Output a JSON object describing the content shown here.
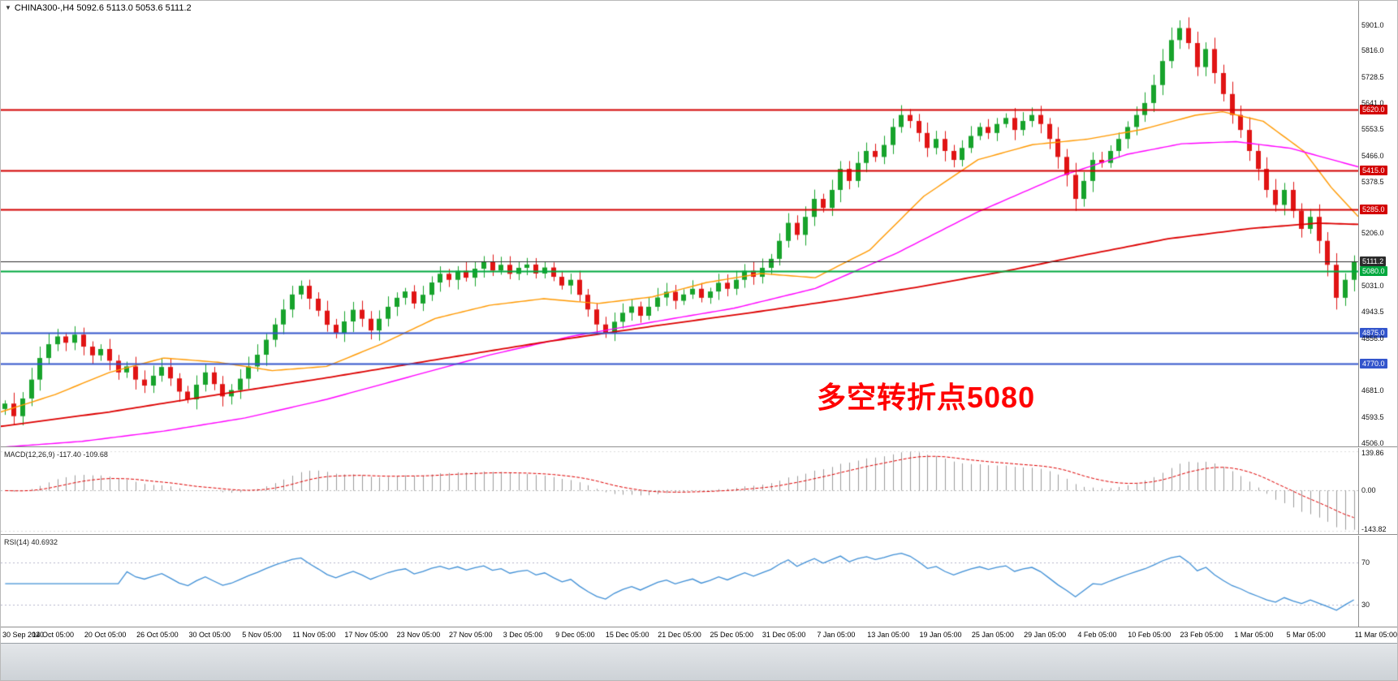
{
  "header": {
    "triangle": "▼",
    "symbol_line": "CHINA300-,H4  5092.6 5113.0 5053.6 5111.2"
  },
  "chart_data": {
    "type": "candlestick",
    "symbol": "CHINA300-",
    "timeframe": "H4",
    "ohlc_display": {
      "open": 5092.6,
      "high": 5113.0,
      "low": 5053.6,
      "close": 5111.2
    },
    "annotation": {
      "text": "多空转折点5080",
      "color": "#ff0000"
    },
    "x_labels": [
      "30 Sep 2020",
      "14 Oct 05:00",
      "20 Oct 05:00",
      "26 Oct 05:00",
      "30 Oct 05:00",
      "5 Nov 05:00",
      "11 Nov 05:00",
      "17 Nov 05:00",
      "23 Nov 05:00",
      "27 Nov 05:00",
      "3 Dec 05:00",
      "9 Dec 05:00",
      "15 Dec 05:00",
      "21 Dec 05:00",
      "25 Dec 05:00",
      "31 Dec 05:00",
      "7 Jan 05:00",
      "13 Jan 05:00",
      "19 Jan 05:00",
      "25 Jan 05:00",
      "29 Jan 05:00",
      "4 Feb 05:00",
      "10 Feb 05:00",
      "23 Feb 05:00",
      "1 Mar 05:00",
      "5 Mar 05:00",
      "11 Mar 05:00"
    ],
    "closes": [
      4638,
      4596,
      4655,
      4718,
      4790,
      4836,
      4862,
      4841,
      4868,
      4828,
      4799,
      4820,
      4781,
      4742,
      4762,
      4718,
      4698,
      4731,
      4760,
      4722,
      4678,
      4652,
      4701,
      4742,
      4703,
      4662,
      4683,
      4721,
      4762,
      4801,
      4851,
      4902,
      4952,
      5002,
      5031,
      4988,
      4948,
      4901,
      4872,
      4912,
      4951,
      4921,
      4882,
      4921,
      4961,
      4991,
      5012,
      4972,
      5001,
      5042,
      5071,
      5051,
      5081,
      5058,
      5088,
      5112,
      5082,
      5101,
      5071,
      5091,
      5102,
      5072,
      5092,
      5061,
      5032,
      5051,
      5001,
      4952,
      4902,
      4872,
      4911,
      4941,
      4962,
      4931,
      4961,
      4992,
      5011,
      4981,
      5002,
      5021,
      4991,
      5012,
      5041,
      5021,
      5051,
      5081,
      5061,
      5091,
      5121,
      5181,
      5241,
      5201,
      5261,
      5321,
      5291,
      5351,
      5421,
      5381,
      5441,
      5481,
      5461,
      5501,
      5561,
      5601,
      5581,
      5541,
      5491,
      5521,
      5481,
      5451,
      5491,
      5531,
      5561,
      5541,
      5571,
      5591,
      5551,
      5581,
      5601,
      5571,
      5521,
      5461,
      5401,
      5321,
      5381,
      5451,
      5441,
      5481,
      5521,
      5561,
      5601,
      5641,
      5701,
      5781,
      5851,
      5891,
      5841,
      5761,
      5821,
      5741,
      5671,
      5601,
      5551,
      5481,
      5421,
      5351,
      5301,
      5351,
      5281,
      5221,
      5261,
      5181,
      5101,
      4991,
      5051,
      5111.2
    ],
    "price_axis": {
      "range": {
        "max": 5982,
        "min": 4495
      },
      "ticks": [
        "5901.0",
        "5816.0",
        "5728.5",
        "5641.0",
        "5553.5",
        "5466.0",
        "5378.5",
        "5206.0",
        "5031.0",
        "4943.5",
        "4856.0",
        "4681.0",
        "4593.5",
        "4506.0"
      ]
    },
    "hlines": [
      {
        "value": 5620.0,
        "label": "5620.0",
        "color": "#d30000",
        "badge_bg": "#d30000",
        "width": 2
      },
      {
        "value": 5415.0,
        "label": "5415.0",
        "color": "#d30000",
        "badge_bg": "#d30000",
        "width": 2
      },
      {
        "value": 5285.0,
        "label": "5285.0",
        "color": "#d30000",
        "badge_bg": "#d30000",
        "width": 2
      },
      {
        "value": 5111.2,
        "label": "5111.2",
        "color": "#2b2b2b",
        "badge_bg": "#2b2b2b",
        "width": 1
      },
      {
        "value": 5080.0,
        "label": "5080.0",
        "color": "#00a83e",
        "badge_bg": "#00a83e",
        "width": 2
      },
      {
        "value": 4875.0,
        "label": "4875.0",
        "color": "#3355cc",
        "badge_bg": "#3355cc",
        "width": 2
      },
      {
        "value": 4770.0,
        "label": "4770.0",
        "color": "#3355cc",
        "badge_bg": "#3355cc",
        "width": 2
      }
    ],
    "moving_averages": [
      {
        "name": "ma-fast-orange",
        "color": "#ff9900",
        "width": 1.4,
        "points": [
          [
            0,
            4610
          ],
          [
            0.04,
            4668
          ],
          [
            0.08,
            4742
          ],
          [
            0.12,
            4790
          ],
          [
            0.16,
            4776
          ],
          [
            0.2,
            4748
          ],
          [
            0.24,
            4762
          ],
          [
            0.28,
            4836
          ],
          [
            0.32,
            4922
          ],
          [
            0.36,
            4966
          ],
          [
            0.4,
            4988
          ],
          [
            0.44,
            4972
          ],
          [
            0.48,
            4994
          ],
          [
            0.52,
            5042
          ],
          [
            0.56,
            5072
          ],
          [
            0.6,
            5058
          ],
          [
            0.64,
            5150
          ],
          [
            0.68,
            5330
          ],
          [
            0.72,
            5452
          ],
          [
            0.76,
            5502
          ],
          [
            0.8,
            5520
          ],
          [
            0.84,
            5552
          ],
          [
            0.88,
            5600
          ],
          [
            0.9,
            5612
          ],
          [
            0.93,
            5580
          ],
          [
            0.96,
            5480
          ],
          [
            0.98,
            5360
          ],
          [
            1.0,
            5262
          ]
        ]
      },
      {
        "name": "ma-medium-magenta",
        "color": "#ff00ff",
        "width": 1.4,
        "points": [
          [
            0,
            4492
          ],
          [
            0.06,
            4512
          ],
          [
            0.12,
            4546
          ],
          [
            0.18,
            4590
          ],
          [
            0.24,
            4652
          ],
          [
            0.3,
            4726
          ],
          [
            0.36,
            4800
          ],
          [
            0.42,
            4862
          ],
          [
            0.48,
            4910
          ],
          [
            0.54,
            4956
          ],
          [
            0.6,
            5022
          ],
          [
            0.66,
            5140
          ],
          [
            0.72,
            5278
          ],
          [
            0.78,
            5396
          ],
          [
            0.83,
            5470
          ],
          [
            0.87,
            5505
          ],
          [
            0.91,
            5512
          ],
          [
            0.95,
            5490
          ],
          [
            1.0,
            5428
          ]
        ]
      },
      {
        "name": "ma-slow-red",
        "color": "#dd0000",
        "width": 1.8,
        "points": [
          [
            0,
            4562
          ],
          [
            0.08,
            4610
          ],
          [
            0.16,
            4668
          ],
          [
            0.24,
            4724
          ],
          [
            0.32,
            4784
          ],
          [
            0.4,
            4843
          ],
          [
            0.48,
            4896
          ],
          [
            0.56,
            4946
          ],
          [
            0.62,
            4986
          ],
          [
            0.68,
            5030
          ],
          [
            0.74,
            5080
          ],
          [
            0.8,
            5135
          ],
          [
            0.86,
            5188
          ],
          [
            0.92,
            5222
          ],
          [
            0.97,
            5240
          ],
          [
            1.0,
            5236
          ]
        ]
      }
    ],
    "colors": {
      "up": "#17a32b",
      "down": "#e01414",
      "histogram": "#9b9b9b",
      "signal": "#e00000",
      "rsi_line": "#3f8fd6"
    },
    "macd": {
      "label": "MACD(12,26,9) -117.40 -109.68",
      "params": [
        12,
        26,
        9
      ],
      "current_values": [
        "-117.40",
        "-109.68"
      ],
      "ticks": [
        {
          "label": "139.86",
          "value": 139.86
        },
        {
          "label": "0.00",
          "value": 0
        },
        {
          "label": "-143.82",
          "value": -143.82
        }
      ]
    },
    "rsi": {
      "label": "RSI(14) 40.6932",
      "period": 14,
      "current_value": "40.6932",
      "levels": [
        {
          "label": "70",
          "value": 70
        },
        {
          "label": "30",
          "value": 30
        }
      ]
    }
  }
}
